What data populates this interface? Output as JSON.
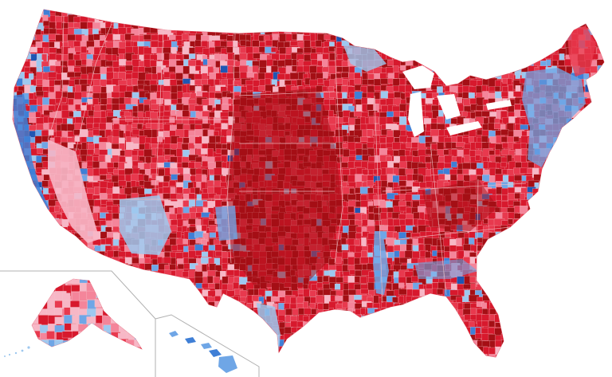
{
  "map": {
    "palette": {
      "dark_red": "#a50f15",
      "red": "#d7192d",
      "medium_red": "#e8394e",
      "light_red": "#f4859a",
      "pale_red": "#f7b7c6",
      "pale_blue": "#9ec8ef",
      "light_blue": "#6fa6e6",
      "blue": "#3f7fd6",
      "dark_blue": "#1f56b3",
      "border": "#f3c9cf",
      "inset_line": "#b0b0b0",
      "background": "#ffffff"
    }
  }
}
